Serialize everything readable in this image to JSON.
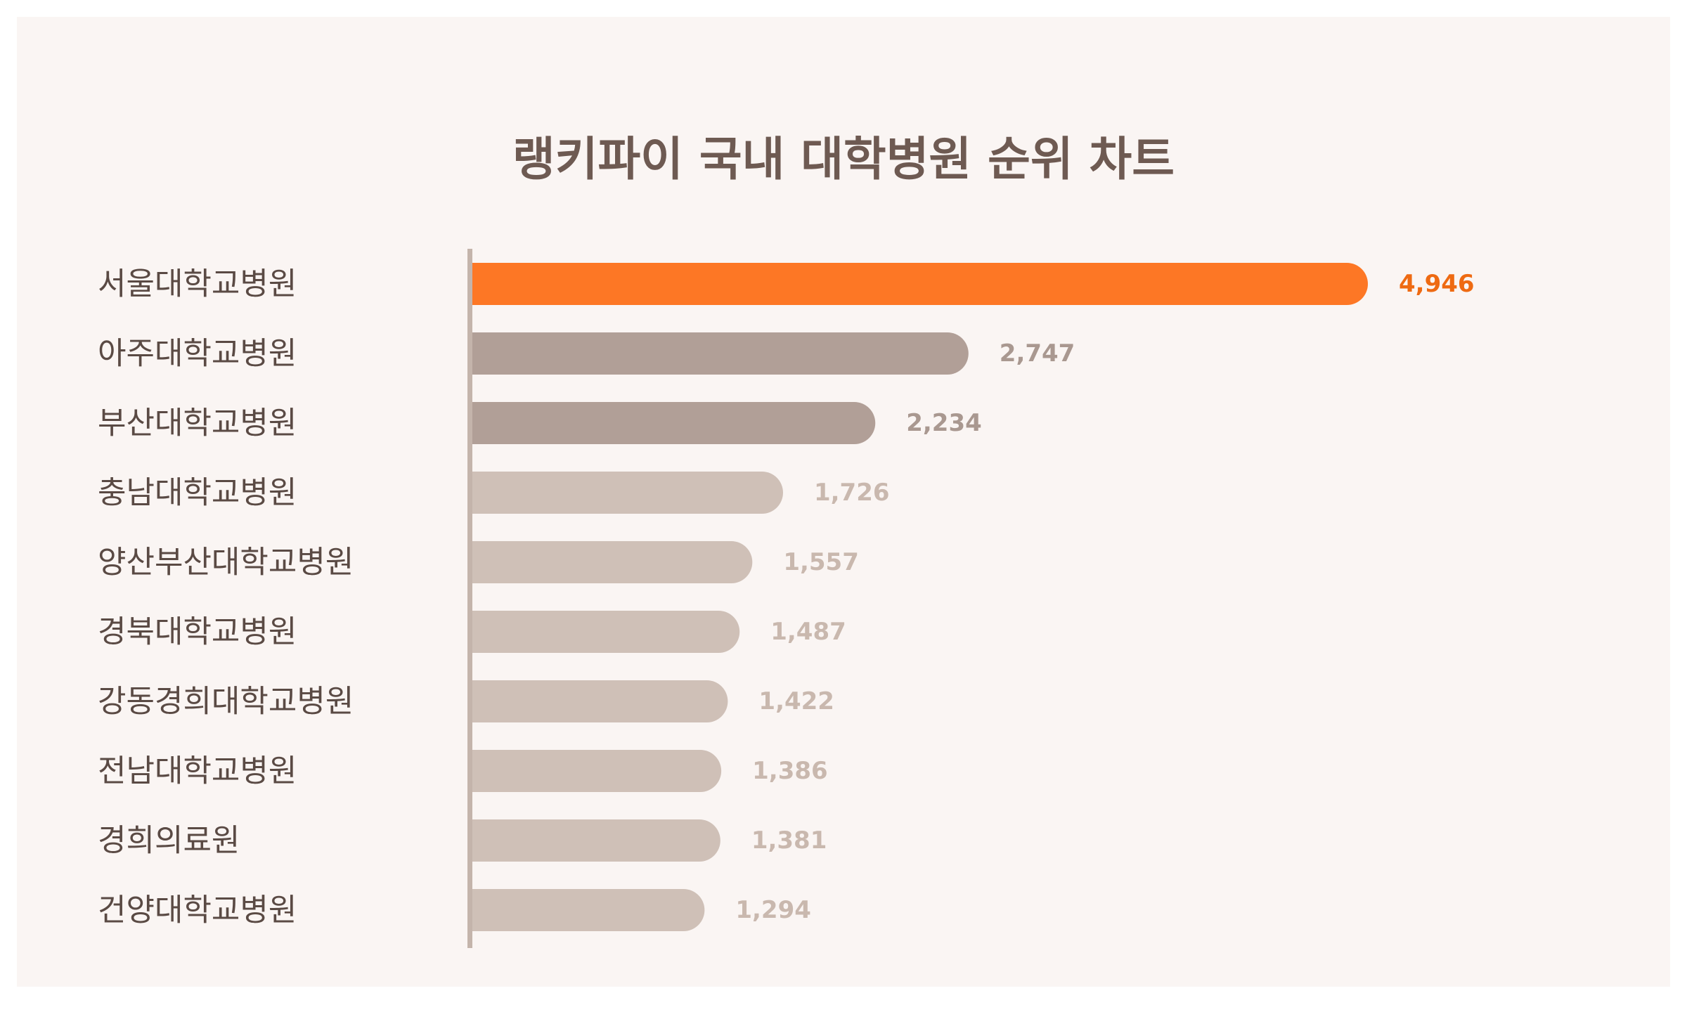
{
  "chart_data": {
    "type": "bar",
    "orientation": "horizontal",
    "title": "랭키파이 국내 대학병원 순위 차트",
    "categories": [
      "서울대학교병원",
      "아주대학교병원",
      "부산대학교병원",
      "충남대학교병원",
      "양산부산대학교병원",
      "경북대학교병원",
      "강동경희대학교병원",
      "전남대학교병원",
      "경희의료원",
      "건양대학교병원"
    ],
    "values": [
      4946,
      2747,
      2234,
      1726,
      1557,
      1487,
      1422,
      1386,
      1381,
      1294
    ],
    "value_labels": [
      "4,946",
      "2,747",
      "2,234",
      "1,726",
      "1,557",
      "1,487",
      "1,422",
      "1,386",
      "1,381",
      "1,294"
    ],
    "xlabel": "",
    "ylabel": "",
    "xlim": [
      0,
      5000
    ],
    "grid": false,
    "legend": "none",
    "colors": {
      "background": "#faf5f3",
      "top1_bar": "#fd7725",
      "top1_label": "#ee6a12",
      "top2_3_bar": "#b19f97",
      "top2_3_label": "#a99890",
      "rest_bar": "#cfc0b7",
      "rest_label": "#c9b8ae",
      "axis": "#c4b4ab",
      "title": "#6e5a52",
      "category_text": "#5a4a44"
    }
  }
}
